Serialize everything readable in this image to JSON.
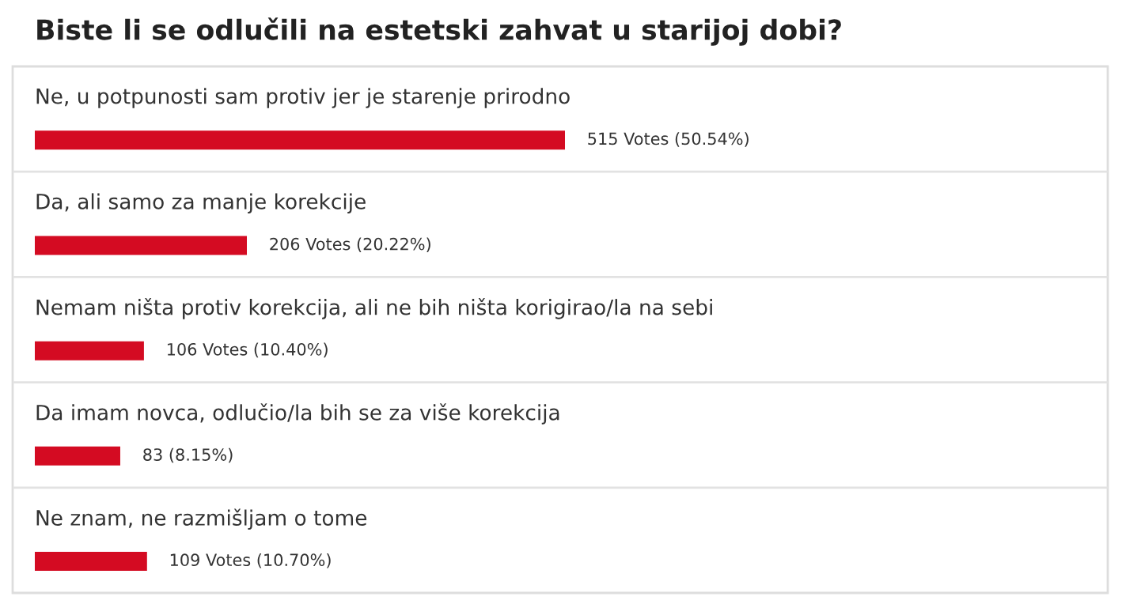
{
  "chart_data": {
    "type": "bar",
    "orientation": "horizontal",
    "title": "Biste li se odlučili na estetski zahvat u starijoj dobi?",
    "categories": [
      "Ne, u potpunosti sam protiv jer je starenje prirodno",
      "Da, ali samo za manje korekcije",
      "Nemam ništa protiv korekcija, ali ne bih ništa korigirao/la na sebi",
      "Da imam novca, odlučio/la bih se za više korekcija",
      "Ne znam, ne razmišljam o tome"
    ],
    "values": [
      515,
      206,
      106,
      83,
      109
    ],
    "value_labels": [
      "515 Votes (50.54%)",
      "206 Votes (20.22%)",
      "106 Votes (10.40%)",
      "83 (8.15%)",
      "109 Votes (10.70%)"
    ],
    "color": "#d40b22"
  }
}
